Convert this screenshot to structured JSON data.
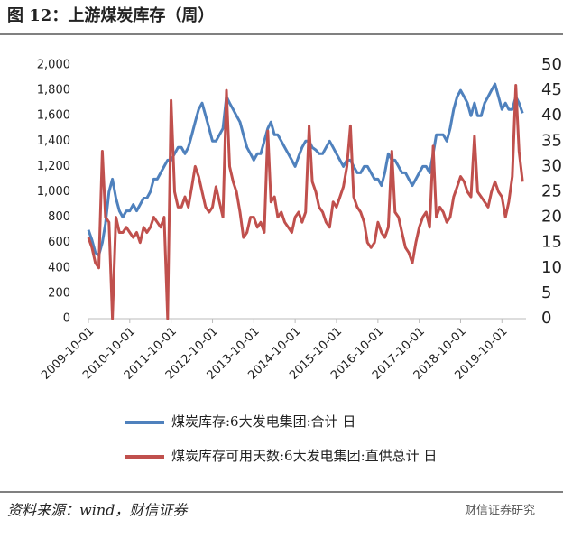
{
  "chart_data": {
    "type": "line",
    "title": "图 12：上游煤炭库存（周）",
    "source": "资料来源：wind，财信证券",
    "watermark": "财信证券研究",
    "x": [
      "2009-10-01",
      "2009-11-01",
      "2009-12-01",
      "2010-01-01",
      "2010-02-01",
      "2010-03-01",
      "2010-04-01",
      "2010-05-01",
      "2010-06-01",
      "2010-07-01",
      "2010-08-01",
      "2010-09-01",
      "2010-10-01",
      "2010-11-01",
      "2010-12-01",
      "2011-01-01",
      "2011-02-01",
      "2011-03-01",
      "2011-04-01",
      "2011-05-01",
      "2011-06-01",
      "2011-07-01",
      "2011-08-01",
      "2011-09-01",
      "2011-10-01",
      "2011-11-01",
      "2011-12-01",
      "2012-01-01",
      "2012-02-01",
      "2012-03-01",
      "2012-04-01",
      "2012-05-01",
      "2012-06-01",
      "2012-07-01",
      "2012-08-01",
      "2012-09-01",
      "2012-10-01",
      "2012-11-01",
      "2012-12-01",
      "2013-01-01",
      "2013-02-01",
      "2013-03-01",
      "2013-04-01",
      "2013-05-01",
      "2013-06-01",
      "2013-07-01",
      "2013-08-01",
      "2013-09-01",
      "2013-10-01",
      "2013-11-01",
      "2013-12-01",
      "2014-01-01",
      "2014-02-01",
      "2014-03-01",
      "2014-04-01",
      "2014-05-01",
      "2014-06-01",
      "2014-07-01",
      "2014-08-01",
      "2014-09-01",
      "2014-10-01",
      "2014-11-01",
      "2014-12-01",
      "2015-01-01",
      "2015-02-01",
      "2015-03-01",
      "2015-04-01",
      "2015-05-01",
      "2015-06-01",
      "2015-07-01",
      "2015-08-01",
      "2015-09-01",
      "2015-10-01",
      "2015-11-01",
      "2015-12-01",
      "2016-01-01",
      "2016-02-01",
      "2016-03-01",
      "2016-04-01",
      "2016-05-01",
      "2016-06-01",
      "2016-07-01",
      "2016-08-01",
      "2016-09-01",
      "2016-10-01",
      "2016-11-01",
      "2016-12-01",
      "2017-01-01",
      "2017-02-01",
      "2017-03-01",
      "2017-04-01",
      "2017-05-01",
      "2017-06-01",
      "2017-07-01",
      "2017-08-01",
      "2017-09-01",
      "2017-10-01",
      "2017-11-01",
      "2017-12-01",
      "2018-01-01",
      "2018-02-01",
      "2018-03-01",
      "2018-04-01",
      "2018-05-01",
      "2018-06-01",
      "2018-07-01",
      "2018-08-01",
      "2018-09-01",
      "2018-10-01",
      "2018-11-01",
      "2018-12-01",
      "2019-01-01",
      "2019-02-01",
      "2019-03-01",
      "2019-04-01",
      "2019-05-01",
      "2019-06-01",
      "2019-07-01",
      "2019-08-01",
      "2019-09-01",
      "2019-10-01",
      "2019-11-01",
      "2019-12-01",
      "2020-01-01",
      "2020-02-01",
      "2020-03-01",
      "2020-04-01"
    ],
    "series": [
      {
        "name": "煤炭库存:6大发电集团:合计 日",
        "color": "#4f81bd",
        "axis": "y",
        "values": [
          700,
          620,
          520,
          500,
          600,
          750,
          1000,
          1100,
          950,
          850,
          800,
          850,
          850,
          900,
          850,
          900,
          950,
          950,
          1000,
          1100,
          1100,
          1150,
          1200,
          1250,
          1250,
          1300,
          1350,
          1350,
          1300,
          1350,
          1450,
          1550,
          1650,
          1700,
          1600,
          1500,
          1400,
          1400,
          1450,
          1500,
          1750,
          1700,
          1650,
          1600,
          1550,
          1450,
          1350,
          1300,
          1250,
          1300,
          1300,
          1400,
          1500,
          1550,
          1450,
          1450,
          1400,
          1350,
          1300,
          1250,
          1200,
          1280,
          1350,
          1400,
          1400,
          1350,
          1330,
          1300,
          1300,
          1350,
          1400,
          1350,
          1300,
          1250,
          1200,
          1250,
          1250,
          1200,
          1150,
          1150,
          1200,
          1200,
          1150,
          1100,
          1100,
          1050,
          1150,
          1300,
          1250,
          1250,
          1200,
          1150,
          1150,
          1100,
          1050,
          1100,
          1150,
          1200,
          1200,
          1150,
          1300,
          1450,
          1450,
          1450,
          1400,
          1500,
          1650,
          1750,
          1800,
          1750,
          1700,
          1600,
          1700,
          1600,
          1600,
          1700,
          1750,
          1800,
          1850,
          1750,
          1650,
          1700,
          1650,
          1650,
          1750,
          1700,
          1620
        ]
      },
      {
        "name": "煤炭库存可用天数:6大发电集团:直供总计 日",
        "color": "#c0504d",
        "axis": "y2",
        "values": [
          16,
          14,
          11,
          10,
          33,
          20,
          19,
          0,
          20,
          17,
          17,
          18,
          17,
          16,
          17,
          15,
          18,
          17,
          18,
          20,
          19,
          18,
          20,
          0,
          43,
          25,
          22,
          22,
          24,
          22,
          26,
          30,
          28,
          25,
          22,
          21,
          22,
          26,
          23,
          20,
          45,
          30,
          27,
          25,
          21,
          16,
          17,
          20,
          20,
          18,
          19,
          17,
          37,
          23,
          24,
          20,
          21,
          19,
          18,
          17,
          20,
          21,
          19,
          21,
          38,
          27,
          25,
          22,
          21,
          19,
          18,
          23,
          22,
          24,
          26,
          30,
          38,
          24,
          22,
          21,
          19,
          15,
          14,
          15,
          19,
          17,
          16,
          18,
          33,
          21,
          20,
          17,
          14,
          13,
          11,
          15,
          18,
          20,
          21,
          18,
          34,
          20,
          22,
          21,
          19,
          20,
          24,
          26,
          28,
          27,
          25,
          24,
          36,
          25,
          24,
          23,
          22,
          25,
          27,
          25,
          24,
          20,
          23,
          28,
          46,
          33,
          27
        ]
      }
    ],
    "xlim": [
      "2009-10-01",
      "2020-05-01"
    ],
    "xticks": [
      "2009-10-01",
      "2010-10-01",
      "2011-10-01",
      "2012-10-01",
      "2013-10-01",
      "2014-10-01",
      "2015-10-01",
      "2016-10-01",
      "2017-10-01",
      "2018-10-01",
      "2019-10-01"
    ],
    "ylim": [
      0,
      2000
    ],
    "yticks": [
      0,
      200,
      400,
      600,
      800,
      {
        "value": 1000,
        "label": "1,000"
      },
      {
        "value": 1200,
        "label": "1,200"
      },
      {
        "value": 1400,
        "label": "1,400"
      },
      {
        "value": 1600,
        "label": "1,600"
      },
      {
        "value": 1800,
        "label": "1,800"
      },
      {
        "value": 2000,
        "label": "2,000"
      }
    ],
    "y2lim": [
      0,
      50
    ],
    "y2ticks": [
      0,
      5,
      10,
      15,
      20,
      25,
      30,
      35,
      40,
      45,
      50
    ]
  }
}
